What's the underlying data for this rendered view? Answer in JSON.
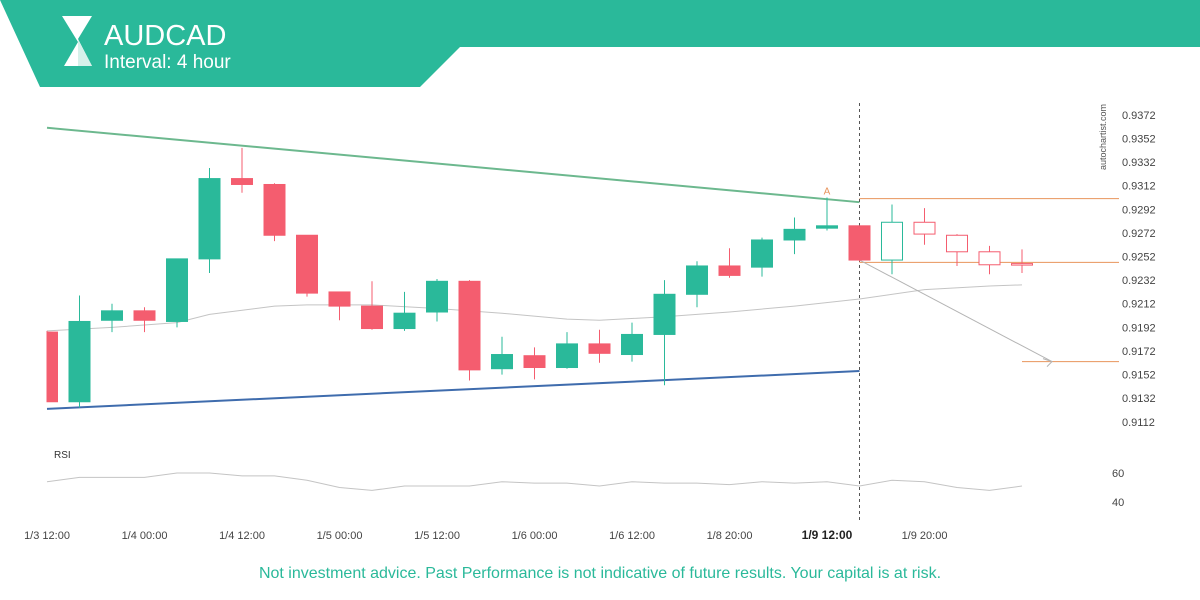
{
  "header": {
    "symbol": "AUDCAD",
    "interval": "Interval: 4 hour",
    "bg_color": "#2ab99a"
  },
  "watermark": "autochartist.com",
  "footer": {
    "disclaimer": "Not investment advice. Past Performance is not indicative of future results. Your capital is at risk."
  },
  "colors": {
    "bull": "#2ab99a",
    "bear": "#f45d6f",
    "resistance": "#6cb88e",
    "support": "#3f6cad",
    "level": "#e8945b",
    "ma": "#c4c4c4",
    "projection": "#b4b4b4",
    "grid_text": "#444444"
  },
  "chart_data": {
    "type": "candlestick",
    "y_ticks": [
      "0.9372",
      "0.9352",
      "0.9332",
      "0.9312",
      "0.9292",
      "0.9272",
      "0.9252",
      "0.9232",
      "0.9212",
      "0.9192",
      "0.9172",
      "0.9152",
      "0.9132",
      "0.9112"
    ],
    "ylim": [
      0.91,
      0.9382
    ],
    "x_tick_labels": [
      "1/3 12:00",
      "1/4 00:00",
      "1/4 12:00",
      "1/5 00:00",
      "1/5 12:00",
      "1/6 00:00",
      "1/6 12:00",
      "1/8 20:00",
      "1/9 12:00",
      "1/9 20:00"
    ],
    "x_tick_bar_index": [
      0,
      3,
      6,
      9,
      12,
      15,
      18,
      21,
      24,
      27
    ],
    "highlight_tick": "1/9 12:00",
    "candles": [
      {
        "o": 0.9188,
        "h": 0.9189,
        "l": 0.9129,
        "c": 0.9129
      },
      {
        "o": 0.9129,
        "h": 0.9219,
        "l": 0.9124,
        "c": 0.9197
      },
      {
        "o": 0.9198,
        "h": 0.9212,
        "l": 0.9188,
        "c": 0.9206
      },
      {
        "o": 0.9206,
        "h": 0.9209,
        "l": 0.9188,
        "c": 0.9198
      },
      {
        "o": 0.9197,
        "h": 0.925,
        "l": 0.9192,
        "c": 0.925
      },
      {
        "o": 0.925,
        "h": 0.9327,
        "l": 0.9238,
        "c": 0.9318
      },
      {
        "o": 0.9318,
        "h": 0.9344,
        "l": 0.9306,
        "c": 0.9313
      },
      {
        "o": 0.9313,
        "h": 0.9314,
        "l": 0.9265,
        "c": 0.927
      },
      {
        "o": 0.927,
        "h": 0.927,
        "l": 0.9218,
        "c": 0.9221
      },
      {
        "o": 0.9222,
        "h": 0.9222,
        "l": 0.9198,
        "c": 0.921
      },
      {
        "o": 0.921,
        "h": 0.9231,
        "l": 0.919,
        "c": 0.9191
      },
      {
        "o": 0.9191,
        "h": 0.9222,
        "l": 0.9189,
        "c": 0.9204
      },
      {
        "o": 0.9205,
        "h": 0.9233,
        "l": 0.9197,
        "c": 0.9231
      },
      {
        "o": 0.9231,
        "h": 0.9232,
        "l": 0.9147,
        "c": 0.9156
      },
      {
        "o": 0.9157,
        "h": 0.9184,
        "l": 0.9152,
        "c": 0.9169
      },
      {
        "o": 0.9168,
        "h": 0.9175,
        "l": 0.9148,
        "c": 0.9158
      },
      {
        "o": 0.9158,
        "h": 0.9188,
        "l": 0.9157,
        "c": 0.9178
      },
      {
        "o": 0.9178,
        "h": 0.919,
        "l": 0.9162,
        "c": 0.917
      },
      {
        "o": 0.9169,
        "h": 0.9196,
        "l": 0.9163,
        "c": 0.9186
      },
      {
        "o": 0.9186,
        "h": 0.9232,
        "l": 0.9143,
        "c": 0.922
      },
      {
        "o": 0.922,
        "h": 0.9248,
        "l": 0.9209,
        "c": 0.9244
      },
      {
        "o": 0.9244,
        "h": 0.9259,
        "l": 0.9234,
        "c": 0.9236
      },
      {
        "o": 0.9243,
        "h": 0.9268,
        "l": 0.9235,
        "c": 0.9266
      },
      {
        "o": 0.9266,
        "h": 0.9285,
        "l": 0.9254,
        "c": 0.9275
      },
      {
        "o": 0.9276,
        "h": 0.9302,
        "l": 0.9274,
        "c": 0.9278
      },
      {
        "o": 0.9278,
        "h": 0.9278,
        "l": 0.9248,
        "c": 0.9249
      },
      {
        "o": 0.9249,
        "h": 0.9296,
        "l": 0.9237,
        "c": 0.9281
      },
      {
        "o": 0.9281,
        "h": 0.9293,
        "l": 0.9262,
        "c": 0.9271
      },
      {
        "o": 0.927,
        "h": 0.9271,
        "l": 0.9244,
        "c": 0.9256
      },
      {
        "o": 0.9256,
        "h": 0.9261,
        "l": 0.9237,
        "c": 0.9245
      },
      {
        "o": 0.9246,
        "h": 0.9258,
        "l": 0.9238,
        "c": 0.9245
      }
    ],
    "forecast_from_index": 26,
    "moving_average": [
      {
        "i": 0,
        "v": 0.9189
      },
      {
        "i": 2,
        "v": 0.9192
      },
      {
        "i": 4,
        "v": 0.9196
      },
      {
        "i": 5,
        "v": 0.9203
      },
      {
        "i": 7,
        "v": 0.921
      },
      {
        "i": 8,
        "v": 0.9211
      },
      {
        "i": 10,
        "v": 0.9211
      },
      {
        "i": 12,
        "v": 0.9208
      },
      {
        "i": 14,
        "v": 0.9204
      },
      {
        "i": 16,
        "v": 0.9199
      },
      {
        "i": 17,
        "v": 0.9198
      },
      {
        "i": 19,
        "v": 0.9201
      },
      {
        "i": 21,
        "v": 0.9205
      },
      {
        "i": 23,
        "v": 0.921
      },
      {
        "i": 25,
        "v": 0.9216
      },
      {
        "i": 27,
        "v": 0.9224
      },
      {
        "i": 29,
        "v": 0.9227
      },
      {
        "i": 30,
        "v": 0.9228
      }
    ],
    "resistance_line": {
      "from": {
        "i": 0,
        "v": 0.9361
      },
      "to": {
        "i": 25,
        "v": 0.9298
      }
    },
    "support_line": {
      "from": {
        "i": 0,
        "v": 0.9123
      },
      "to": {
        "i": 25,
        "v": 0.9155
      }
    },
    "breakout_level": {
      "v": 0.9301,
      "label": "A"
    },
    "entry_level": {
      "v": 0.9247
    },
    "target_level": {
      "v": 0.9163
    },
    "projection": {
      "from": {
        "i": 25,
        "v": 0.9249
      },
      "to": {
        "i": 30,
        "v": 0.9163
      }
    },
    "event_marker_index": 25,
    "rsi": {
      "label": "RSI",
      "ticks": [
        60,
        40
      ],
      "values": [
        54,
        57,
        57,
        57,
        60,
        60,
        58,
        58,
        55,
        50,
        48,
        51,
        51,
        51,
        54,
        53,
        53,
        51,
        54,
        53,
        53,
        52,
        54,
        53,
        54,
        51,
        55,
        54,
        50,
        48,
        51
      ]
    }
  }
}
